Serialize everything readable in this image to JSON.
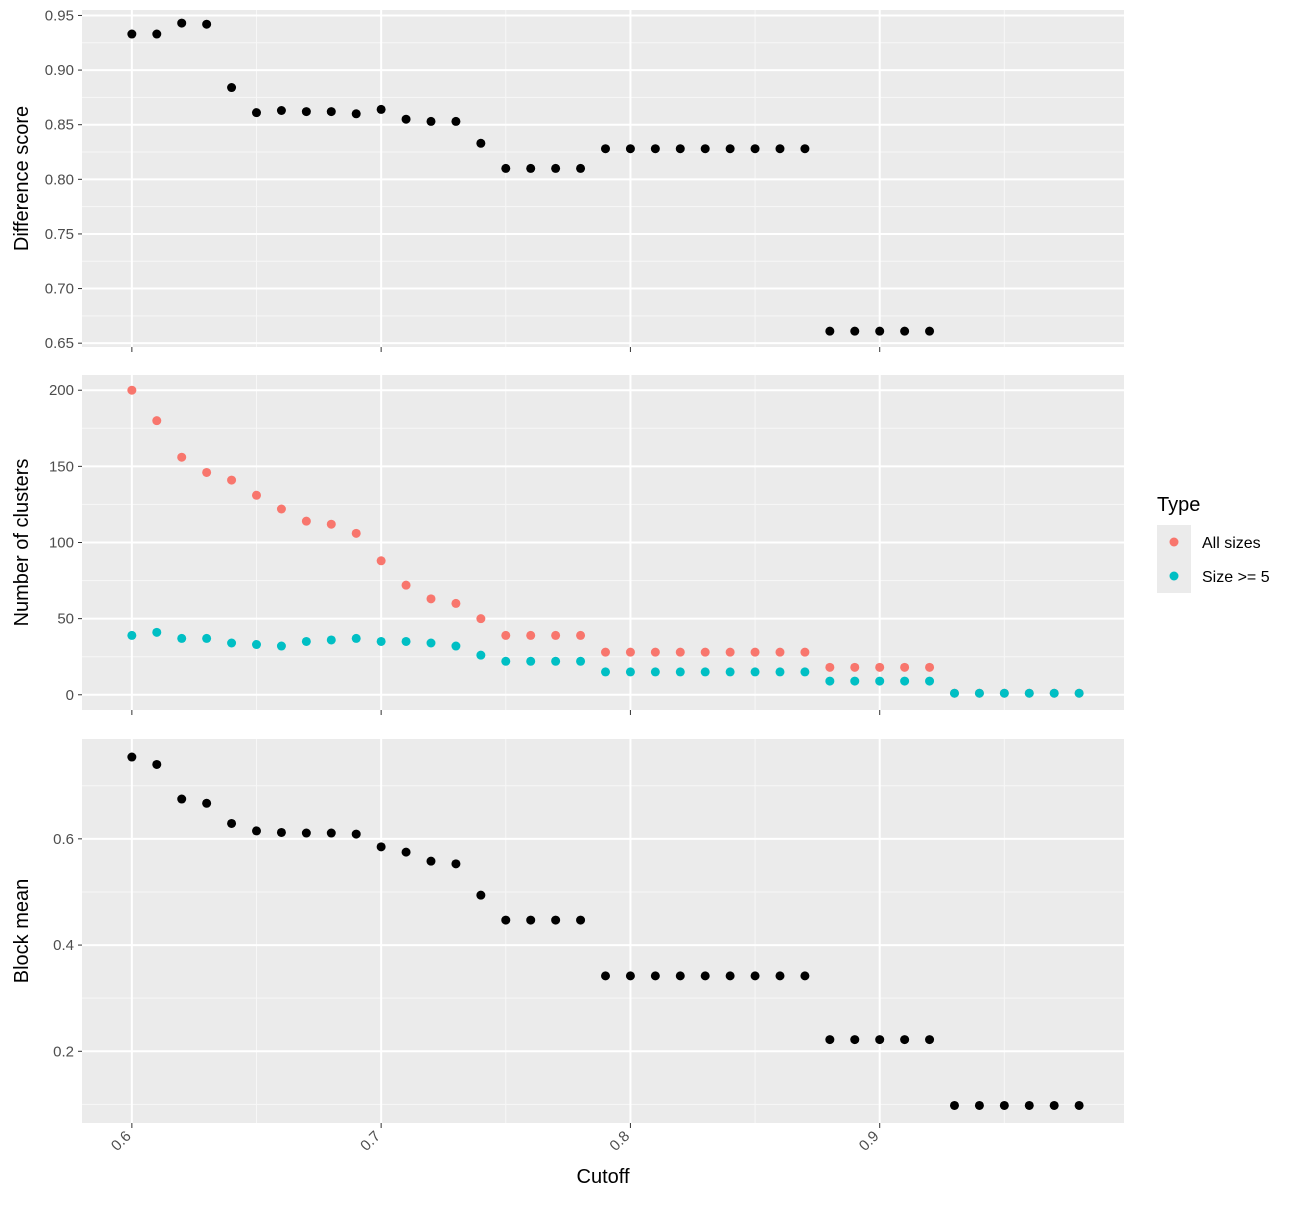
{
  "figure": {
    "xlabel": "Cutoff",
    "legend_title": "Type"
  },
  "chart_data": [
    {
      "type": "scatter",
      "title": "",
      "xlabel": "Cutoff",
      "ylabel": "Difference score",
      "xlim": [
        0.58,
        0.998
      ],
      "ylim": [
        0.6465,
        0.955
      ],
      "xticks": [
        0.6,
        0.7,
        0.8,
        0.9
      ],
      "xtick_labels": [
        "0.6",
        "0.7",
        "0.8",
        "0.9"
      ],
      "yticks": [
        0.65,
        0.7,
        0.75,
        0.8,
        0.85,
        0.9,
        0.95
      ],
      "ytick_labels": [
        "0.65",
        "0.70",
        "0.75",
        "0.80",
        "0.85",
        "0.90",
        "0.95"
      ],
      "grid": true,
      "series": [
        {
          "color": "#000000",
          "x": [
            0.6,
            0.61,
            0.62,
            0.63,
            0.64,
            0.65,
            0.66,
            0.67,
            0.68,
            0.69,
            0.7,
            0.71,
            0.72,
            0.73,
            0.74,
            0.75,
            0.76,
            0.77,
            0.78,
            0.79,
            0.8,
            0.81,
            0.82,
            0.83,
            0.84,
            0.85,
            0.86,
            0.87,
            0.88,
            0.89,
            0.9,
            0.91,
            0.92
          ],
          "y": [
            0.933,
            0.933,
            0.943,
            0.942,
            0.884,
            0.861,
            0.863,
            0.862,
            0.862,
            0.86,
            0.864,
            0.855,
            0.853,
            0.853,
            0.833,
            0.81,
            0.81,
            0.81,
            0.81,
            0.828,
            0.828,
            0.828,
            0.828,
            0.828,
            0.828,
            0.828,
            0.828,
            0.828,
            0.661,
            0.661,
            0.661,
            0.661,
            0.661
          ]
        }
      ]
    },
    {
      "type": "scatter",
      "title": "",
      "xlabel": "Cutoff",
      "ylabel": "Number of clusters",
      "xlim": [
        0.58,
        0.998
      ],
      "ylim": [
        -10,
        210
      ],
      "xticks": [
        0.6,
        0.7,
        0.8,
        0.9
      ],
      "xtick_labels": [
        "0.6",
        "0.7",
        "0.8",
        "0.9"
      ],
      "yticks": [
        0,
        50,
        100,
        150,
        200
      ],
      "ytick_labels": [
        "0",
        "50",
        "100",
        "150",
        "200"
      ],
      "grid": true,
      "legend": {
        "title": "Type",
        "position": "right"
      },
      "series": [
        {
          "name": "All sizes",
          "color": "#F8766D",
          "x": [
            0.6,
            0.61,
            0.62,
            0.63,
            0.64,
            0.65,
            0.66,
            0.67,
            0.68,
            0.69,
            0.7,
            0.71,
            0.72,
            0.73,
            0.74,
            0.75,
            0.76,
            0.77,
            0.78,
            0.79,
            0.8,
            0.81,
            0.82,
            0.83,
            0.84,
            0.85,
            0.86,
            0.87,
            0.88,
            0.89,
            0.9,
            0.91,
            0.92,
            0.93,
            0.94,
            0.95,
            0.96,
            0.97,
            0.98
          ],
          "y": [
            200,
            180,
            156,
            146,
            141,
            131,
            122,
            114,
            112,
            106,
            88,
            72,
            63,
            60,
            50,
            39,
            39,
            39,
            39,
            28,
            28,
            28,
            28,
            28,
            28,
            28,
            28,
            28,
            18,
            18,
            18,
            18,
            18,
            1,
            1,
            1,
            1,
            1,
            1
          ]
        },
        {
          "name": "Size >= 5",
          "color": "#00BFC4",
          "x": [
            0.6,
            0.61,
            0.62,
            0.63,
            0.64,
            0.65,
            0.66,
            0.67,
            0.68,
            0.69,
            0.7,
            0.71,
            0.72,
            0.73,
            0.74,
            0.75,
            0.76,
            0.77,
            0.78,
            0.79,
            0.8,
            0.81,
            0.82,
            0.83,
            0.84,
            0.85,
            0.86,
            0.87,
            0.88,
            0.89,
            0.9,
            0.91,
            0.92,
            0.93,
            0.94,
            0.95,
            0.96,
            0.97,
            0.98
          ],
          "y": [
            39,
            41,
            37,
            37,
            34,
            33,
            32,
            35,
            36,
            37,
            35,
            35,
            34,
            32,
            26,
            22,
            22,
            22,
            22,
            15,
            15,
            15,
            15,
            15,
            15,
            15,
            15,
            15,
            9,
            9,
            9,
            9,
            9,
            1,
            1,
            1,
            1,
            1,
            1
          ]
        }
      ]
    },
    {
      "type": "scatter",
      "title": "",
      "xlabel": "Cutoff",
      "ylabel": "Block mean",
      "xlim": [
        0.58,
        0.998
      ],
      "ylim": [
        0.065,
        0.788
      ],
      "xticks": [
        0.6,
        0.7,
        0.8,
        0.9
      ],
      "xtick_labels": [
        "0.6",
        "0.7",
        "0.8",
        "0.9"
      ],
      "yticks": [
        0.2,
        0.4,
        0.6
      ],
      "ytick_labels": [
        "0.2",
        "0.4",
        "0.6"
      ],
      "grid": true,
      "series": [
        {
          "color": "#000000",
          "x": [
            0.6,
            0.61,
            0.62,
            0.63,
            0.64,
            0.65,
            0.66,
            0.67,
            0.68,
            0.69,
            0.7,
            0.71,
            0.72,
            0.73,
            0.74,
            0.75,
            0.76,
            0.77,
            0.78,
            0.79,
            0.8,
            0.81,
            0.82,
            0.83,
            0.84,
            0.85,
            0.86,
            0.87,
            0.88,
            0.89,
            0.9,
            0.91,
            0.92,
            0.93,
            0.94,
            0.95,
            0.96,
            0.97,
            0.98
          ],
          "y": [
            0.754,
            0.74,
            0.675,
            0.667,
            0.629,
            0.615,
            0.612,
            0.611,
            0.611,
            0.609,
            0.585,
            0.575,
            0.558,
            0.553,
            0.494,
            0.447,
            0.447,
            0.447,
            0.447,
            0.342,
            0.342,
            0.342,
            0.342,
            0.342,
            0.342,
            0.342,
            0.342,
            0.342,
            0.222,
            0.222,
            0.222,
            0.222,
            0.222,
            0.098,
            0.098,
            0.098,
            0.098,
            0.098,
            0.098
          ]
        }
      ]
    }
  ]
}
